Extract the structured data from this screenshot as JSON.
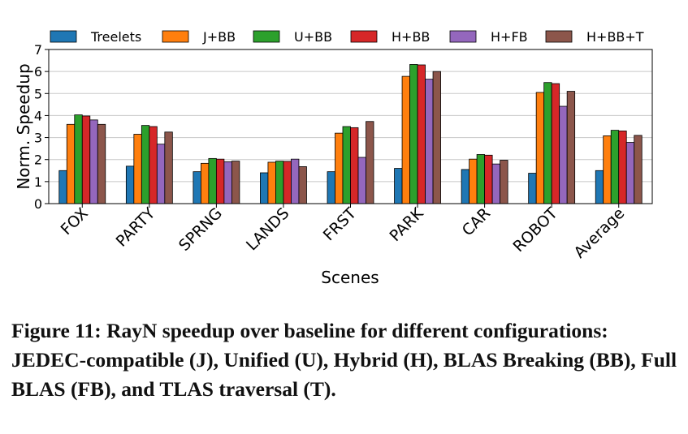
{
  "chart_data": {
    "type": "bar",
    "categories": [
      "FOX",
      "PARTY",
      "SPRNG",
      "LANDS",
      "FRST",
      "PARK",
      "CAR",
      "ROBOT",
      "Average"
    ],
    "series": [
      {
        "name": "Treelets",
        "color": "#1f77b4",
        "values": [
          1.5,
          1.7,
          1.45,
          1.4,
          1.45,
          1.6,
          1.55,
          1.38,
          1.5
        ]
      },
      {
        "name": "J+BB",
        "color": "#ff7f0e",
        "values": [
          3.6,
          3.15,
          1.83,
          1.88,
          3.2,
          5.78,
          2.02,
          5.05,
          3.08
        ]
      },
      {
        "name": "U+BB",
        "color": "#2ca02c",
        "values": [
          4.03,
          3.55,
          2.05,
          1.93,
          3.5,
          6.32,
          2.23,
          5.5,
          3.33
        ]
      },
      {
        "name": "H+BB",
        "color": "#d62728",
        "values": [
          3.98,
          3.5,
          2.02,
          1.92,
          3.45,
          6.3,
          2.2,
          5.45,
          3.3
        ]
      },
      {
        "name": "H+FB",
        "color": "#9467bd",
        "values": [
          3.8,
          2.7,
          1.9,
          2.02,
          2.1,
          5.65,
          1.8,
          4.42,
          2.78
        ]
      },
      {
        "name": "H+BB+T",
        "color": "#8c564b",
        "values": [
          3.6,
          3.25,
          1.93,
          1.68,
          3.73,
          6.0,
          1.97,
          5.1,
          3.1
        ]
      }
    ],
    "xlabel": "Scenes",
    "ylabel": "Norm. Speedup",
    "ylim": [
      0,
      7
    ],
    "yticks": [
      0,
      1,
      2,
      3,
      4,
      5,
      6,
      7
    ],
    "grid": "horizontal",
    "legend": "top"
  },
  "caption": "Figure 11: RayN speedup over baseline for different configurations: JEDEC-compatible (J), Unified (U), Hybrid (H), BLAS Breaking (BB), Full BLAS (FB), and TLAS traversal (T)."
}
